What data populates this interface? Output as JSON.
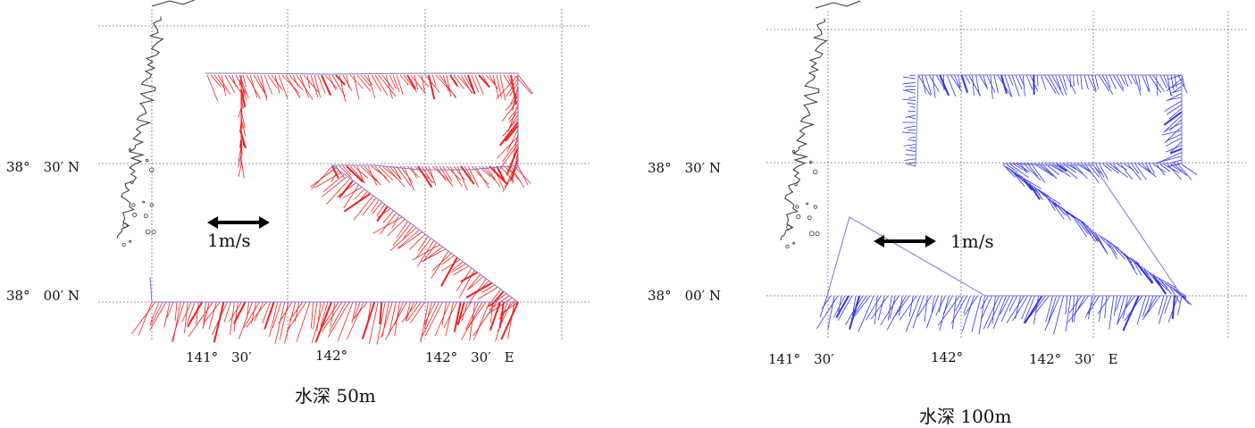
{
  "panels": [
    {
      "caption": "水深 50m",
      "lat_labels": [
        "38°　30′ N",
        "38°　00′ N"
      ],
      "lon_labels": [
        "141°　30′",
        "142°",
        "142°　30′　E"
      ],
      "scale_label": "1m/s",
      "vector_color": "#ee2222",
      "depth": "50m"
    },
    {
      "caption": "水深 100m",
      "lat_labels": [
        "38°　30′ N",
        "38°　00′ N"
      ],
      "lon_labels": [
        "141°　30′",
        "142°",
        "142°　30′　E"
      ],
      "scale_label": "1m/s",
      "vector_color": "#3333ee",
      "depth": "100m"
    }
  ],
  "colors": {
    "grid": "#777777",
    "coast": "#333333",
    "track": "#7777dd",
    "arrow": "#000000"
  }
}
